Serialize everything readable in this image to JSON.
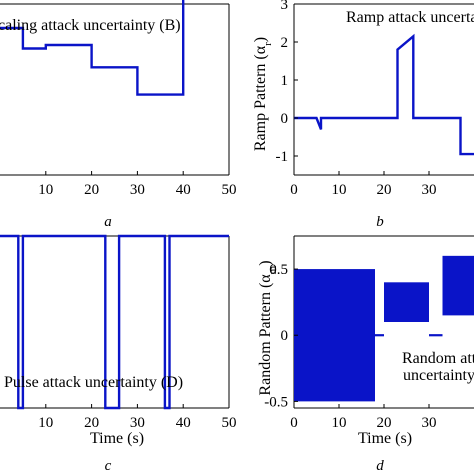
{
  "figure_captions": [
    "a",
    "b",
    "c",
    "d"
  ],
  "chart_data": [
    {
      "id": "a",
      "type": "line",
      "annotation": "Scaling attack uncertainty (B)",
      "annotation_visible": "caling attack uncertainty (B)",
      "xlabel": "",
      "ylabel": "",
      "xlim": [
        0,
        50
      ],
      "ylim": [
        0,
        10
      ],
      "xticks": [
        10,
        20,
        30,
        40,
        50
      ],
      "yticks": [],
      "color": "#0a14c8",
      "series": [
        {
          "x": [
            -2,
            5,
            5,
            10,
            10,
            20,
            20,
            30,
            30,
            40,
            40,
            50
          ],
          "y": [
            8.6,
            8.6,
            7.4,
            7.4,
            7.6,
            7.6,
            6.3,
            6.3,
            4.7,
            4.7,
            10.5,
            10.5
          ]
        }
      ]
    },
    {
      "id": "b",
      "type": "line",
      "annotation": "Ramp attack uncertainty",
      "annotation_visible": "Ramp attack uncertai",
      "xlabel": "",
      "ylabel": "Ramp Pattern (α",
      "ylabel_sub": "r",
      "xlim": [
        0,
        40
      ],
      "ylim": [
        -1.5,
        3
      ],
      "xticks": [
        0,
        10,
        20,
        30
      ],
      "yticks": [
        -1,
        0,
        1,
        2,
        3
      ],
      "color": "#0a14c8",
      "series": [
        {
          "x": [
            0,
            5,
            6,
            6,
            23,
            23,
            26.5,
            26.5,
            37,
            37,
            40
          ],
          "y": [
            0,
            0,
            -0.3,
            0,
            0,
            1.8,
            2.15,
            0,
            0,
            -0.95,
            -0.95
          ]
        }
      ]
    },
    {
      "id": "c",
      "type": "line",
      "annotation": "Pulse attack uncertainty (D)",
      "xlabel": "Time (s)",
      "ylabel": "",
      "xlim": [
        0,
        50
      ],
      "ylim": [
        0,
        1
      ],
      "xticks": [
        10,
        20,
        30,
        40,
        50
      ],
      "yticks": [],
      "color": "#0a14c8",
      "series": [
        {
          "x": [
            -2,
            4,
            4,
            5,
            5,
            23,
            23,
            26,
            26,
            36,
            36,
            37,
            37,
            50
          ],
          "y": [
            1,
            1,
            0,
            0,
            1,
            1,
            0,
            0,
            1,
            1,
            0,
            0,
            1,
            1
          ]
        }
      ]
    },
    {
      "id": "d",
      "type": "area",
      "annotation": "Random attack uncertainty",
      "annotation_visible": [
        "Random atta",
        "uncertainty"
      ],
      "xlabel": "Time (s)",
      "ylabel": "Random Pattern (α",
      "ylabel_sub": "m",
      "xlim": [
        0,
        40
      ],
      "ylim": [
        -0.55,
        0.75
      ],
      "xticks": [
        0,
        10,
        20,
        30
      ],
      "yticks": [
        -0.5,
        0,
        0.5
      ],
      "color": "#0a14c8",
      "bands": [
        {
          "x_start": 0,
          "x_end": 18,
          "low": -0.5,
          "high": 0.5
        },
        {
          "x_start": 18,
          "x_end": 20,
          "low": 0,
          "high": 0
        },
        {
          "x_start": 20,
          "x_end": 30,
          "low": 0.1,
          "high": 0.4
        },
        {
          "x_start": 30,
          "x_end": 33,
          "low": 0,
          "high": 0
        },
        {
          "x_start": 33,
          "x_end": 40,
          "low": 0.15,
          "high": 0.6
        }
      ]
    }
  ]
}
